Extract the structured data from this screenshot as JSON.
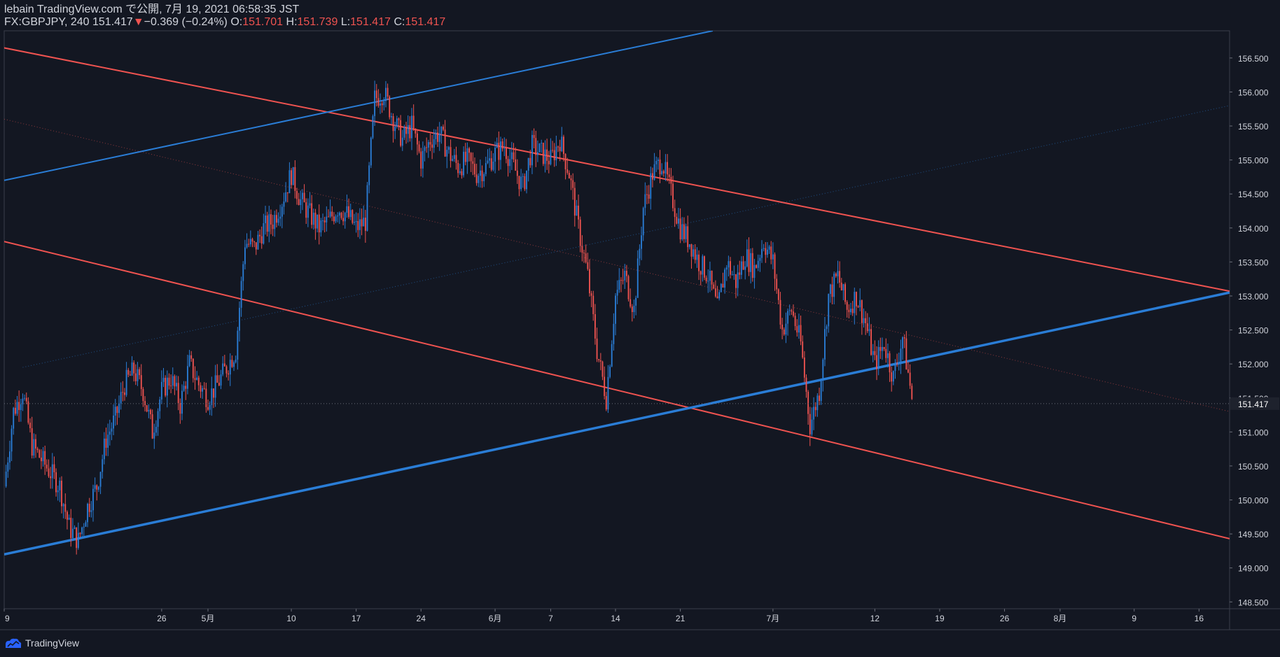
{
  "header": {
    "publish_line": "lebain TradingView.com で公開, 7月 19, 2021 06:58:35 JST",
    "symbol_line": "FX:GBPJPY, 240 151.417",
    "change_arrow": "▼",
    "change": "−0.369 (−0.24%)",
    "o_label": "O:",
    "o_value": "151.701",
    "h_label": "H:",
    "h_value": "151.739",
    "l_label": "L:",
    "l_value": "151.417",
    "c_label": "C:",
    "c_value": "151.417"
  },
  "footer": {
    "brand": "TradingView"
  },
  "colors": {
    "background": "#131722",
    "up": "#2a7dd6",
    "down": "#ef5350",
    "grid_text": "#d1d4dc",
    "border": "#3a3e4a"
  },
  "chart_data": {
    "type": "candlestick",
    "symbol": "FX:GBPJPY",
    "interval": "240",
    "last_price": "151.417",
    "ylim": [
      148.4,
      156.9
    ],
    "y_ticks": [
      "156.500",
      "156.000",
      "155.500",
      "155.000",
      "154.500",
      "154.000",
      "153.500",
      "153.000",
      "152.500",
      "152.000",
      "151.500",
      "151.000",
      "150.500",
      "150.000",
      "149.500",
      "149.000",
      "148.500"
    ],
    "x_ticks": [
      "9",
      "26",
      "5月",
      "10",
      "17",
      "24",
      "6月",
      "7",
      "14",
      "21",
      "7月",
      "12",
      "19",
      "26",
      "8月",
      "9",
      "16"
    ],
    "x_tick_days": [
      0,
      17,
      22,
      31,
      38,
      45,
      53,
      59,
      66,
      73,
      83,
      94,
      101,
      108,
      114,
      122,
      129
    ],
    "xlim_days": [
      0,
      132.3
    ],
    "series": [
      {
        "kind": "price_path",
        "points": [
          [
            0,
            150.2
          ],
          [
            1,
            151.3
          ],
          [
            2,
            151.6
          ],
          [
            3,
            150.8
          ],
          [
            5,
            150.4
          ],
          [
            6,
            150.2
          ],
          [
            7,
            149.6
          ],
          [
            8,
            149.4
          ],
          [
            9,
            149.9
          ],
          [
            10,
            150.2
          ],
          [
            11,
            150.9
          ],
          [
            12,
            151.2
          ],
          [
            13,
            151.7
          ],
          [
            14,
            151.9
          ],
          [
            15,
            151.6
          ],
          [
            16,
            151.0
          ],
          [
            17,
            151.6
          ],
          [
            18,
            151.8
          ],
          [
            19,
            151.4
          ],
          [
            20,
            152.0
          ],
          [
            21,
            151.7
          ],
          [
            22,
            151.5
          ],
          [
            23,
            151.7
          ],
          [
            25,
            152.2
          ],
          [
            26,
            153.8
          ],
          [
            27,
            153.7
          ],
          [
            28,
            154.0
          ],
          [
            29,
            154.1
          ],
          [
            30,
            154.4
          ],
          [
            31,
            154.8
          ],
          [
            32,
            154.4
          ],
          [
            33,
            154.2
          ],
          [
            34,
            154.0
          ],
          [
            35,
            154.1
          ],
          [
            36,
            154.3
          ],
          [
            37,
            154.2
          ],
          [
            38,
            154.0
          ],
          [
            39,
            154.1
          ],
          [
            40,
            155.9
          ],
          [
            41,
            156.0
          ],
          [
            42,
            155.6
          ],
          [
            43,
            155.3
          ],
          [
            44,
            155.5
          ],
          [
            45,
            155.0
          ],
          [
            46,
            155.3
          ],
          [
            47,
            155.4
          ],
          [
            48,
            155.1
          ],
          [
            49,
            154.9
          ],
          [
            50,
            155.0
          ],
          [
            51,
            154.8
          ],
          [
            52,
            154.9
          ],
          [
            53,
            155.1
          ],
          [
            54,
            155.2
          ],
          [
            55,
            154.9
          ],
          [
            56,
            154.6
          ],
          [
            57,
            155.2
          ],
          [
            58,
            155.1
          ],
          [
            59,
            155.0
          ],
          [
            60,
            155.3
          ],
          [
            61,
            154.8
          ],
          [
            62,
            154.0
          ],
          [
            63,
            153.3
          ],
          [
            64,
            152.2
          ],
          [
            65,
            151.5
          ],
          [
            66,
            153.0
          ],
          [
            67,
            153.3
          ],
          [
            68,
            152.8
          ],
          [
            69,
            154.3
          ],
          [
            70,
            154.8
          ],
          [
            71,
            155.0
          ],
          [
            72,
            154.5
          ],
          [
            73,
            154.0
          ],
          [
            74,
            153.8
          ],
          [
            75,
            153.5
          ],
          [
            76,
            153.3
          ],
          [
            77,
            152.8
          ],
          [
            78,
            153.5
          ],
          [
            79,
            153.2
          ],
          [
            80,
            153.6
          ],
          [
            81,
            153.4
          ],
          [
            82,
            153.8
          ],
          [
            83,
            153.5
          ],
          [
            84,
            152.5
          ],
          [
            85,
            152.8
          ],
          [
            86,
            152.3
          ],
          [
            87,
            151.1
          ],
          [
            88,
            151.6
          ],
          [
            89,
            153.0
          ],
          [
            90,
            153.3
          ],
          [
            91,
            152.8
          ],
          [
            92,
            153.0
          ],
          [
            93,
            152.6
          ],
          [
            94,
            152.0
          ],
          [
            95,
            152.3
          ],
          [
            96,
            151.8
          ],
          [
            97,
            152.4
          ],
          [
            98,
            151.5
          ]
        ]
      }
    ],
    "trendlines": [
      {
        "color": "#ef5350",
        "width": 2,
        "style": "solid",
        "p1": [
          -13,
          157.0
        ],
        "p2": [
          132.3,
          153.07
        ]
      },
      {
        "color": "#ef5350",
        "width": 2,
        "style": "solid",
        "p1": [
          0,
          153.8
        ],
        "p2": [
          132.3,
          149.43
        ]
      },
      {
        "color": "#2a7dd6",
        "width": 2,
        "style": "solid",
        "p1": [
          0,
          154.7
        ],
        "p2": [
          76.5,
          156.9
        ]
      },
      {
        "color": "#2a7dd6",
        "width": 3.5,
        "style": "solid",
        "p1": [
          0,
          149.2
        ],
        "p2": [
          132.3,
          153.05
        ]
      },
      {
        "color": "#ef5350",
        "width": 1,
        "style": "dotted",
        "p1": [
          0,
          155.6
        ],
        "p2": [
          132.3,
          151.3
        ]
      },
      {
        "color": "#2a7dd6",
        "width": 1,
        "style": "dotted",
        "p1": [
          2,
          151.95
        ],
        "p2": [
          132.3,
          155.8
        ]
      }
    ]
  }
}
